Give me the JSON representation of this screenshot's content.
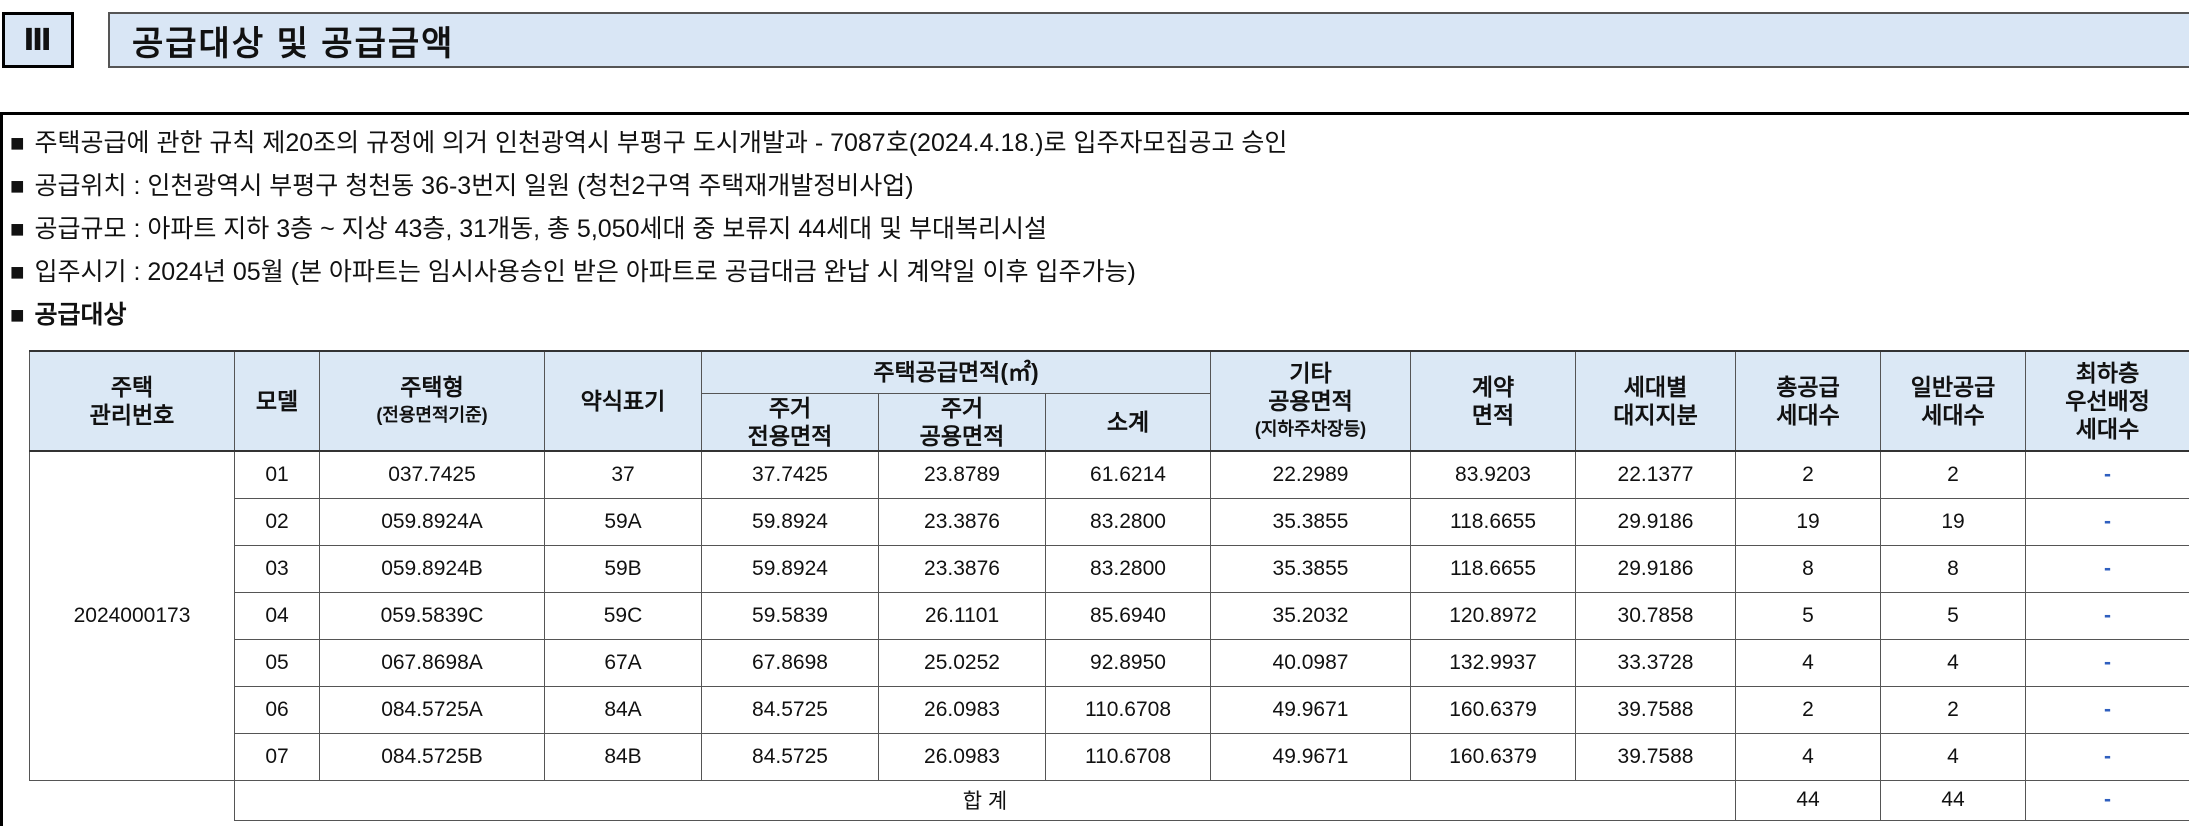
{
  "section": {
    "number": "Ⅲ",
    "title": "공급대상 및 공급금액"
  },
  "bullets": [
    {
      "mark": "■",
      "text": "주택공급에 관한 규칙 제20조의 규정에 의거 인천광역시 부평구 도시개발과 - 7087호(2024.4.18.)로 입주자모집공고 승인"
    },
    {
      "mark": "■",
      "text": "공급위치 : 인천광역시 부평구 청천동 36-3번지 일원 (청천2구역 주택재개발정비사업)"
    },
    {
      "mark": "■",
      "text": "공급규모 : 아파트 지하 3층 ~ 지상 43층, 31개동, 총 5,050세대 중 보류지 44세대 및 부대복리시설"
    },
    {
      "mark": "■",
      "text": "입주시기 : 2024년 05월 (본 아파트는 임시사용승인 받은 아파트로 공급대금 완납 시 계약일 이후 입주가능)"
    },
    {
      "mark": "■",
      "text": "공급대상"
    }
  ],
  "table": {
    "headers": {
      "house_no": "주택\n관리번호",
      "model": "모델",
      "type": "주택형",
      "type_sub": "(전용면적기준)",
      "short": "약식표기",
      "supply_area": "주택공급면적(㎡)",
      "excl_area": "주거\n전용면적",
      "common_area": "주거\n공용면적",
      "subtotal": "소계",
      "other_common": "기타\n공용면적",
      "other_common_sub": "(지하주차장등)",
      "contract_area": "계약\n면적",
      "land_share": "세대별\n대지지분",
      "total_units": "총공급\n세대수",
      "general_units": "일반공급\n세대수",
      "lowest_floor": "최하층\n우선배정\n세대수"
    },
    "house_no": "2024000173",
    "rows": [
      {
        "model": "01",
        "type": "037.7425",
        "short": "37",
        "excl": "37.7425",
        "common": "23.8789",
        "subtotal": "61.6214",
        "other": "22.2989",
        "contract": "83.9203",
        "land": "22.1377",
        "total": "2",
        "general": "2",
        "lowest": "-"
      },
      {
        "model": "02",
        "type": "059.8924A",
        "short": "59A",
        "excl": "59.8924",
        "common": "23.3876",
        "subtotal": "83.2800",
        "other": "35.3855",
        "contract": "118.6655",
        "land": "29.9186",
        "total": "19",
        "general": "19",
        "lowest": "-"
      },
      {
        "model": "03",
        "type": "059.8924B",
        "short": "59B",
        "excl": "59.8924",
        "common": "23.3876",
        "subtotal": "83.2800",
        "other": "35.3855",
        "contract": "118.6655",
        "land": "29.9186",
        "total": "8",
        "general": "8",
        "lowest": "-"
      },
      {
        "model": "04",
        "type": "059.5839C",
        "short": "59C",
        "excl": "59.5839",
        "common": "26.1101",
        "subtotal": "85.6940",
        "other": "35.2032",
        "contract": "120.8972",
        "land": "30.7858",
        "total": "5",
        "general": "5",
        "lowest": "-"
      },
      {
        "model": "05",
        "type": "067.8698A",
        "short": "67A",
        "excl": "67.8698",
        "common": "25.0252",
        "subtotal": "92.8950",
        "other": "40.0987",
        "contract": "132.9937",
        "land": "33.3728",
        "total": "4",
        "general": "4",
        "lowest": "-"
      },
      {
        "model": "06",
        "type": "084.5725A",
        "short": "84A",
        "excl": "84.5725",
        "common": "26.0983",
        "subtotal": "110.6708",
        "other": "49.9671",
        "contract": "160.6379",
        "land": "39.7588",
        "total": "2",
        "general": "2",
        "lowest": "-"
      },
      {
        "model": "07",
        "type": "084.5725B",
        "short": "84B",
        "excl": "84.5725",
        "common": "26.0983",
        "subtotal": "110.6708",
        "other": "49.9671",
        "contract": "160.6379",
        "land": "39.7588",
        "total": "4",
        "general": "4",
        "lowest": "-"
      }
    ],
    "total": {
      "label": "합 계",
      "total_units": "44",
      "general_units": "44",
      "lowest": "-"
    }
  },
  "colors": {
    "header_bg": "#dbe8f5",
    "dash": "#2f5fbf"
  }
}
